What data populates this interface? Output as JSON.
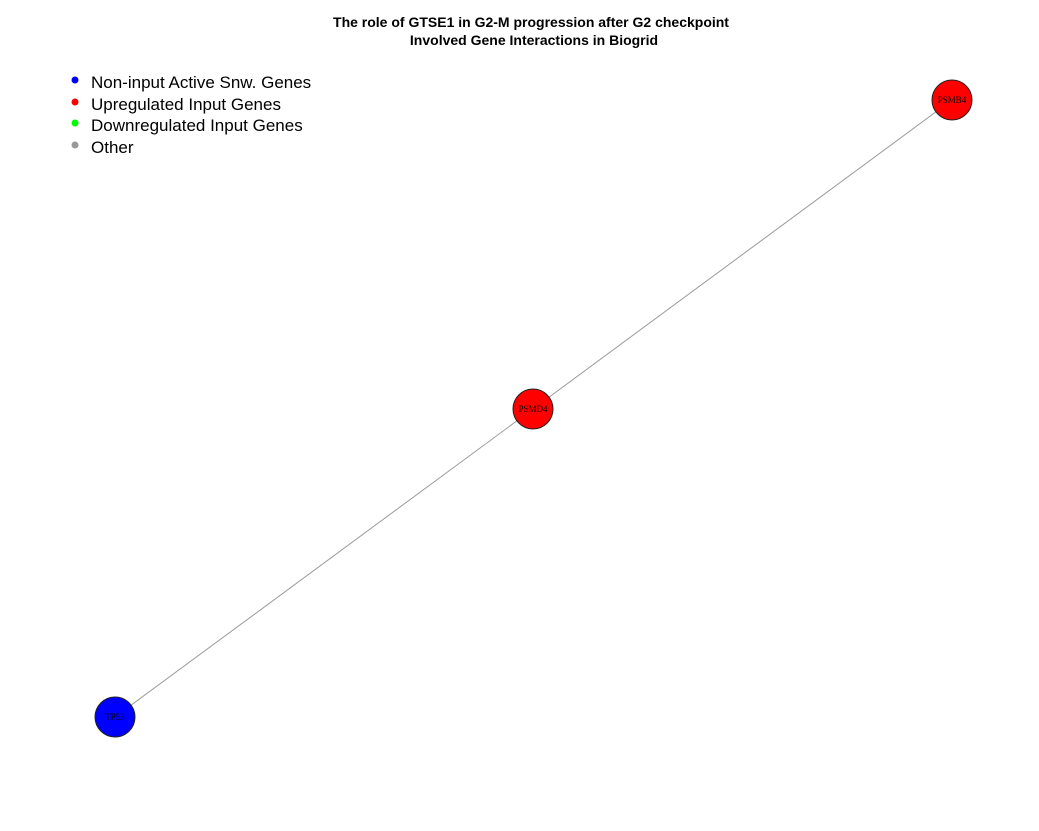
{
  "title": {
    "line1": "The role of GTSE1 in G2-M progression after G2 checkpoint",
    "line2": "Involved Gene Interactions in Biogrid"
  },
  "legend": [
    {
      "label": "Non-input Active Snw. Genes",
      "color": "#0000ff"
    },
    {
      "label": "Upregulated Input Genes",
      "color": "#ff0000"
    },
    {
      "label": "Downregulated Input Genes",
      "color": "#00ff00"
    },
    {
      "label": "Other",
      "color": "#999999"
    }
  ],
  "nodes": [
    {
      "id": "PSMB4",
      "label": "PSMB4",
      "color": "#ff0000"
    },
    {
      "id": "PSMD4",
      "label": "PSMD4",
      "color": "#ff0000"
    },
    {
      "id": "TP53",
      "label": "TP53",
      "color": "#0000ff"
    }
  ],
  "edges": [
    {
      "source": "PSMB4",
      "target": "PSMD4"
    },
    {
      "source": "PSMD4",
      "target": "TP53"
    }
  ]
}
